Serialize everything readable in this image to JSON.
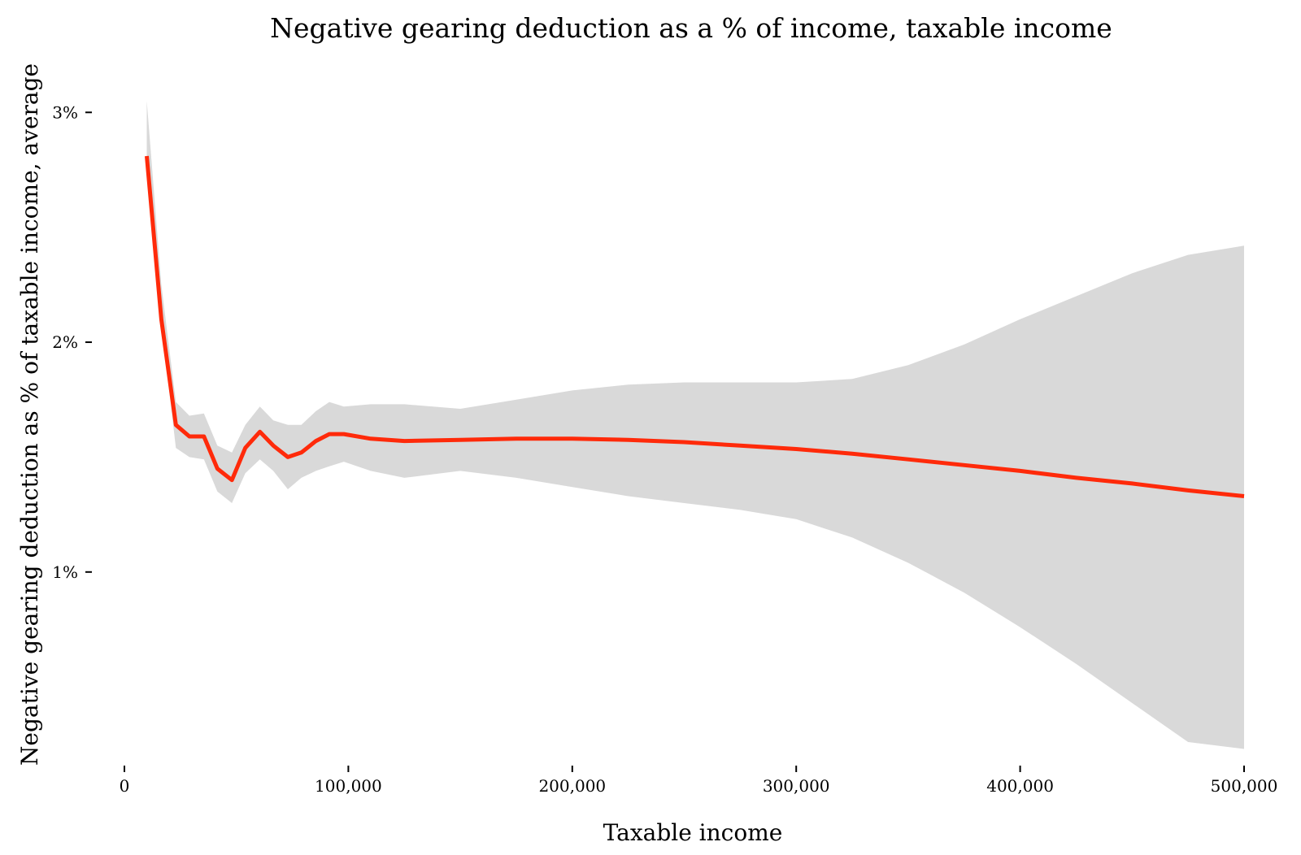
{
  "chart_data": {
    "type": "line",
    "title": "Negative gearing deduction as a % of income, taxable income",
    "xlabel": "Taxable income",
    "ylabel": "Negative gearing deduction as % of taxable income, average",
    "xlim": [
      0,
      500000
    ],
    "ylim": [
      0.2,
      3.1
    ],
    "x_ticks": [
      0,
      100000,
      200000,
      300000,
      400000,
      500000
    ],
    "x_tick_labels": [
      "0",
      "100,000",
      "200,000",
      "300,000",
      "400,000",
      "500,000"
    ],
    "y_ticks": [
      1,
      2,
      3
    ],
    "y_tick_labels": [
      "1%",
      "2%",
      "3%"
    ],
    "grid": false,
    "legend": "none",
    "colors": {
      "line": "#ff2a0a",
      "band": "#d9d9d9"
    },
    "series": [
      {
        "type": "line",
        "x": [
          10000,
          16500,
          23000,
          29000,
          35500,
          41500,
          48000,
          54000,
          60500,
          66500,
          73000,
          79000,
          85500,
          91500,
          98000,
          110000,
          125000,
          150000,
          175000,
          200000,
          225000,
          250000,
          275000,
          300000,
          325000,
          350000,
          375000,
          400000,
          425000,
          450000,
          475000,
          500000
        ],
        "y": [
          2.81,
          2.1,
          1.64,
          1.59,
          1.59,
          1.45,
          1.4,
          1.54,
          1.61,
          1.55,
          1.5,
          1.52,
          1.57,
          1.6,
          1.6,
          1.58,
          1.57,
          1.575,
          1.58,
          1.58,
          1.575,
          1.565,
          1.55,
          1.535,
          1.515,
          1.49,
          1.465,
          1.44,
          1.41,
          1.385,
          1.355,
          1.33
        ]
      },
      {
        "type": "band",
        "x": [
          10000,
          16500,
          23000,
          29000,
          35500,
          41500,
          48000,
          54000,
          60500,
          66500,
          73000,
          79000,
          85500,
          91500,
          98000,
          110000,
          125000,
          150000,
          175000,
          200000,
          225000,
          250000,
          275000,
          300000,
          325000,
          350000,
          375000,
          400000,
          425000,
          450000,
          475000,
          500000
        ],
        "y_lower": [
          2.8,
          2.08,
          1.54,
          1.5,
          1.49,
          1.35,
          1.3,
          1.43,
          1.49,
          1.44,
          1.36,
          1.41,
          1.44,
          1.46,
          1.48,
          1.44,
          1.41,
          1.44,
          1.41,
          1.37,
          1.33,
          1.3,
          1.27,
          1.23,
          1.15,
          1.04,
          0.91,
          0.76,
          0.6,
          0.43,
          0.26,
          0.23
        ],
        "y_upper": [
          3.05,
          2.25,
          1.74,
          1.68,
          1.69,
          1.55,
          1.52,
          1.64,
          1.72,
          1.66,
          1.64,
          1.64,
          1.7,
          1.74,
          1.72,
          1.73,
          1.73,
          1.71,
          1.75,
          1.79,
          1.815,
          1.825,
          1.825,
          1.825,
          1.84,
          1.9,
          1.99,
          2.1,
          2.2,
          2.3,
          2.38,
          2.42
        ]
      }
    ]
  }
}
